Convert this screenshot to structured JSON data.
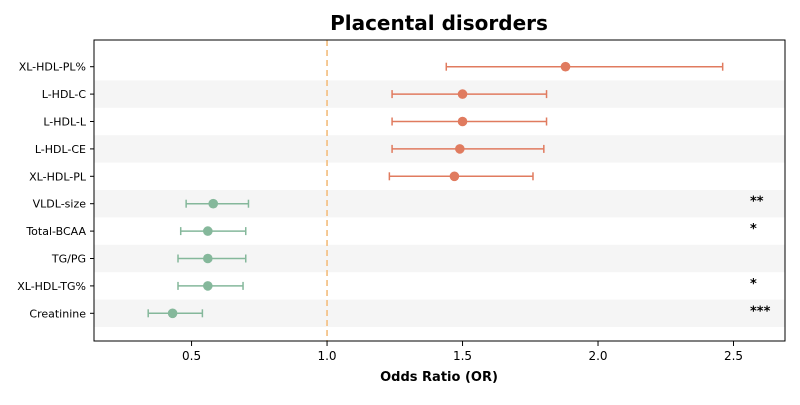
{
  "chart_data": {
    "type": "forest",
    "title": "Placental disorders",
    "xlabel": "Odds Ratio (OR)",
    "ylabel": "",
    "xlim": [
      0.14,
      2.69
    ],
    "xticks": [
      0.5,
      1.0,
      1.5,
      2.0,
      2.5
    ],
    "xtick_labels": [
      "0.5",
      "1.0",
      "1.5",
      "2.0",
      "2.5"
    ],
    "reference_line": 1.0,
    "grid": false,
    "row_banding": true,
    "colors": {
      "risk": "#e07b5f",
      "protective": "#85b89b",
      "reference_line": "#f4c38a",
      "band": "#f5f5f5"
    },
    "rows": [
      {
        "label": "XL-HDL-PL%",
        "or": 1.88,
        "ci_low": 1.44,
        "ci_high": 2.46,
        "group": "risk",
        "sig": ""
      },
      {
        "label": "L-HDL-C",
        "or": 1.5,
        "ci_low": 1.24,
        "ci_high": 1.81,
        "group": "risk",
        "sig": ""
      },
      {
        "label": "L-HDL-L",
        "or": 1.5,
        "ci_low": 1.24,
        "ci_high": 1.81,
        "group": "risk",
        "sig": ""
      },
      {
        "label": "L-HDL-CE",
        "or": 1.49,
        "ci_low": 1.24,
        "ci_high": 1.8,
        "group": "risk",
        "sig": ""
      },
      {
        "label": "XL-HDL-PL",
        "or": 1.47,
        "ci_low": 1.23,
        "ci_high": 1.76,
        "group": "risk",
        "sig": ""
      },
      {
        "label": "VLDL-size",
        "or": 0.58,
        "ci_low": 0.48,
        "ci_high": 0.71,
        "group": "protective",
        "sig": "**"
      },
      {
        "label": "Total-BCAA",
        "or": 0.56,
        "ci_low": 0.46,
        "ci_high": 0.7,
        "group": "protective",
        "sig": "*"
      },
      {
        "label": "TG/PG",
        "or": 0.56,
        "ci_low": 0.45,
        "ci_high": 0.7,
        "group": "protective",
        "sig": ""
      },
      {
        "label": "XL-HDL-TG%",
        "or": 0.56,
        "ci_low": 0.45,
        "ci_high": 0.69,
        "group": "protective",
        "sig": "*"
      },
      {
        "label": "Creatinine",
        "or": 0.43,
        "ci_low": 0.34,
        "ci_high": 0.54,
        "group": "protective",
        "sig": "***"
      }
    ]
  }
}
